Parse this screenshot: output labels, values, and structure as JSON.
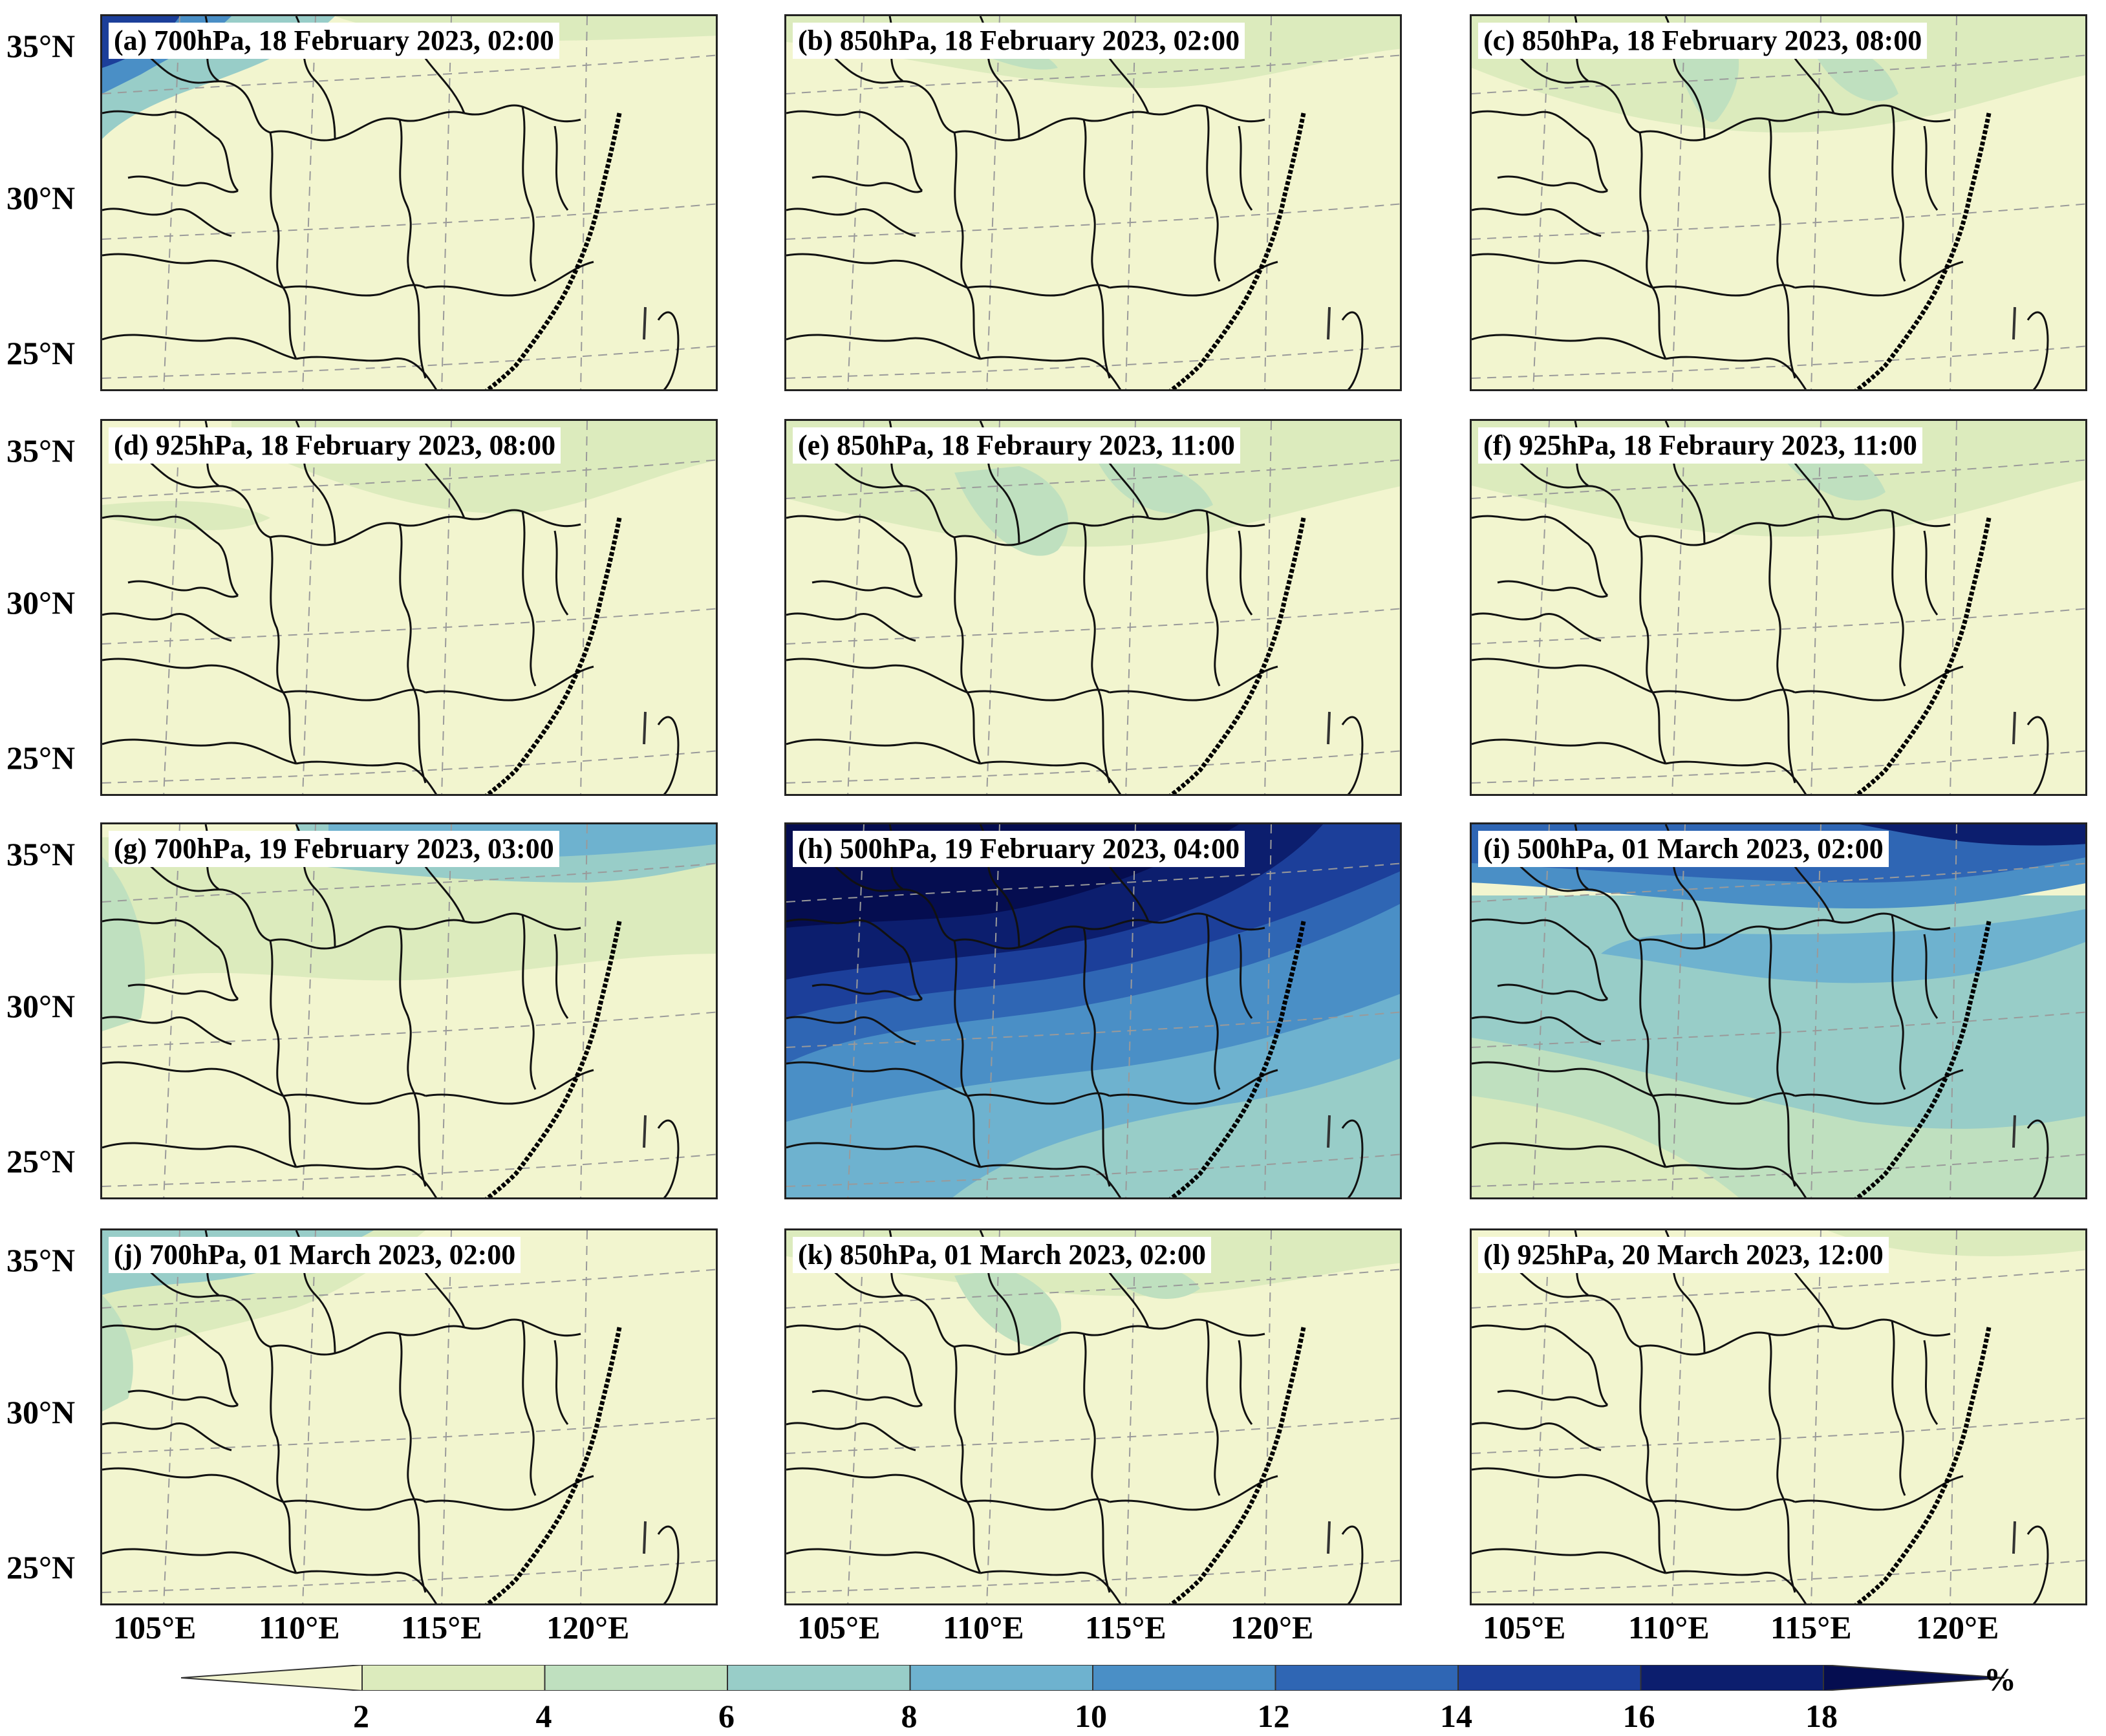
{
  "panels": [
    {
      "id": "a",
      "label": "(a) 700hPa, 18 February 2023, 02:00",
      "level": "700hPa",
      "date": "18 February 2023",
      "time": "02:00"
    },
    {
      "id": "b",
      "label": "(b) 850hPa, 18 February 2023, 02:00",
      "level": "850hPa",
      "date": "18 February 2023",
      "time": "02:00"
    },
    {
      "id": "c",
      "label": "(c) 850hPa, 18 February 2023, 08:00",
      "level": "850hPa",
      "date": "18 February 2023",
      "time": "08:00"
    },
    {
      "id": "d",
      "label": "(d) 925hPa, 18 February 2023, 08:00",
      "level": "925hPa",
      "date": "18 February 2023",
      "time": "08:00"
    },
    {
      "id": "e",
      "label": "(e) 850hPa, 18 Febraury 2023, 11:00",
      "level": "850hPa",
      "date": "18 Febraury 2023",
      "time": "11:00"
    },
    {
      "id": "f",
      "label": "(f) 925hPa, 18 Febraury 2023, 11:00",
      "level": "925hPa",
      "date": "18 Febraury 2023",
      "time": "11:00"
    },
    {
      "id": "g",
      "label": "(g) 700hPa, 19 February 2023, 03:00",
      "level": "700hPa",
      "date": "19 February 2023",
      "time": "03:00"
    },
    {
      "id": "h",
      "label": "(h) 500hPa, 19 February 2023, 04:00",
      "level": "500hPa",
      "date": "19 February 2023",
      "time": "04:00"
    },
    {
      "id": "i",
      "label": "(i) 500hPa, 01 March 2023, 02:00",
      "level": "500hPa",
      "date": "01 March 2023",
      "time": "02:00"
    },
    {
      "id": "j",
      "label": "(j) 700hPa, 01 March 2023, 02:00",
      "level": "700hPa",
      "date": "01 March 2023",
      "time": "02:00"
    },
    {
      "id": "k",
      "label": "(k) 850hPa, 01 March 2023, 02:00",
      "level": "850hPa",
      "date": "01 March 2023",
      "time": "02:00"
    },
    {
      "id": "l",
      "label": "(l) 925hPa, 20 March 2023, 12:00",
      "level": "925hPa",
      "date": "20 March 2023",
      "time": "12:00"
    }
  ],
  "lat_labels": [
    "35°N",
    "30°N",
    "25°N"
  ],
  "lon_labels": [
    "105°E",
    "110°E",
    "115°E",
    "120°E"
  ],
  "colorbar": {
    "ticks": [
      "2",
      "4",
      "6",
      "8",
      "10",
      "12",
      "14",
      "16",
      "18"
    ],
    "unit": "%",
    "colors": [
      "#f2f5cf",
      "#dcebbd",
      "#bfe0bf",
      "#98cdc8",
      "#6eb2cf",
      "#4a8fc6",
      "#2f66b4",
      "#1c3f9a",
      "#0c1e6e",
      "#050d50"
    ]
  }
}
